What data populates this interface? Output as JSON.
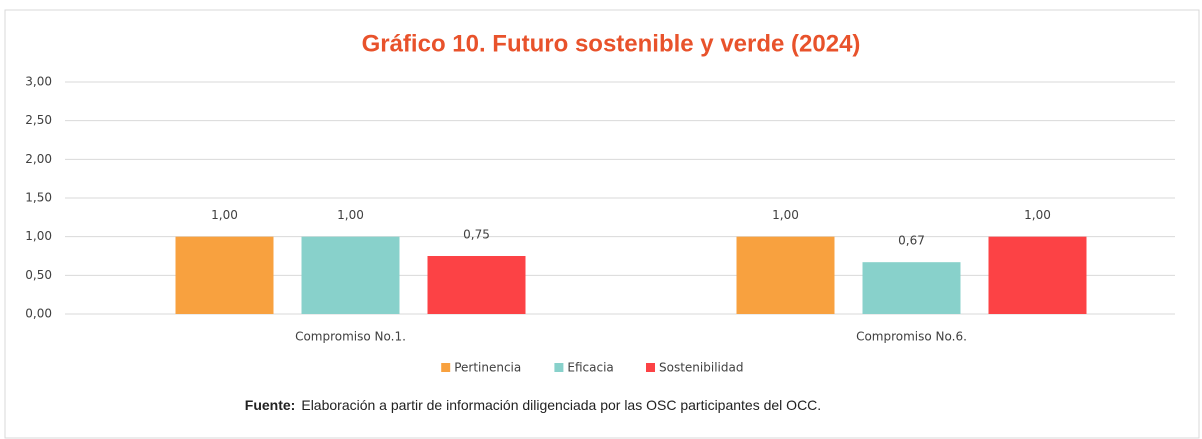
{
  "chart_data": {
    "type": "bar",
    "title": "Gráfico 10. Futuro sostenible y verde (2024)",
    "categories": [
      "Compromiso No.1.",
      "Compromiso No.6."
    ],
    "series": [
      {
        "name": "Pertinencia",
        "color": "#f8a13f",
        "values": [
          1.0,
          1.0
        ],
        "value_labels": [
          "1,00",
          "1,00"
        ]
      },
      {
        "name": "Eficacia",
        "color": "#88d1cb",
        "values": [
          1.0,
          0.67
        ],
        "value_labels": [
          "1,00",
          "0,67"
        ]
      },
      {
        "name": "Sostenibilidad",
        "color": "#fc4245",
        "values": [
          0.75,
          1.0
        ],
        "value_labels": [
          "0,75",
          "1,00"
        ]
      }
    ],
    "ylim": [
      0,
      3
    ],
    "yticks": [
      {
        "value": 0,
        "label": "0,00"
      },
      {
        "value": 0.5,
        "label": "0,50"
      },
      {
        "value": 1,
        "label": "1,00"
      },
      {
        "value": 1.5,
        "label": "1,50"
      },
      {
        "value": 2,
        "label": "2,00"
      },
      {
        "value": 2.5,
        "label": "2,50"
      },
      {
        "value": 3,
        "label": "3,00"
      }
    ],
    "grid": true,
    "legend": "bottom",
    "source": {
      "label": "Fuente:",
      "text": "Elaboración  a partir de información diligenciada por las OSC participantes del OCC."
    }
  }
}
